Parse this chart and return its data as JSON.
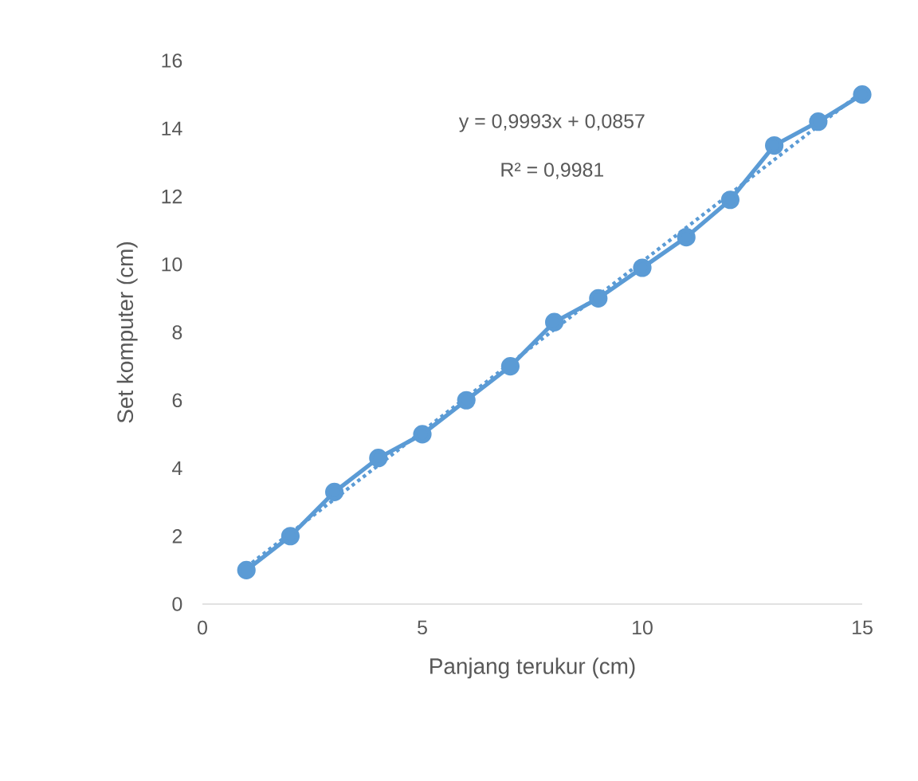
{
  "chart_data": {
    "type": "line",
    "xlabel": "Panjang terukur (cm)",
    "ylabel": "Set komputer (cm)",
    "xlim": [
      0,
      15
    ],
    "xticks": [
      0,
      5,
      10,
      15
    ],
    "ylim": [
      0,
      16
    ],
    "yticks": [
      0,
      2,
      4,
      6,
      8,
      10,
      12,
      14,
      16
    ],
    "annotations": [
      "y = 0,9993x + 0,0857",
      "R² = 0,9981"
    ],
    "series": [
      {
        "color": "#5b9bd5",
        "marker": "circle",
        "line_style": "solid",
        "x": [
          1,
          2,
          3,
          4,
          5,
          6,
          7,
          8,
          9,
          10,
          11,
          12,
          13,
          14,
          15
        ],
        "values": [
          1,
          2,
          3.3,
          4.3,
          5,
          6,
          7,
          8.3,
          9,
          9.9,
          10.8,
          11.9,
          13.5,
          14.2,
          15
        ]
      },
      {
        "type": "line",
        "color": "#5b9bd5",
        "marker": "none",
        "line_style": "dotted",
        "x": [
          1,
          15
        ],
        "values": [
          1.09,
          15.08
        ]
      }
    ]
  }
}
